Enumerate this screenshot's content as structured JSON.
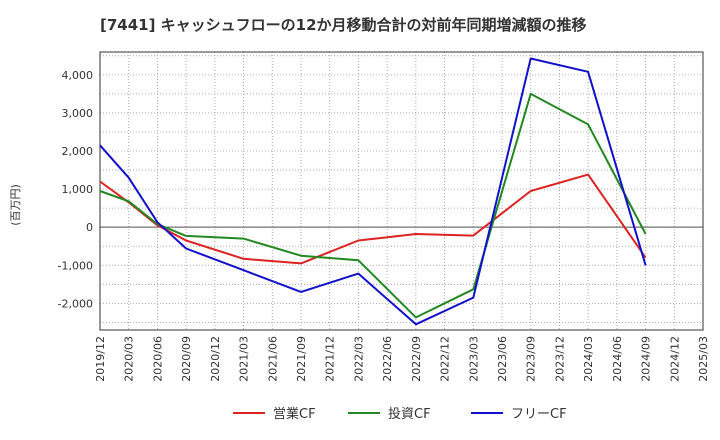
{
  "chart_data": {
    "type": "line",
    "title": "[7441]  キャッシュフローの12か月移動合計の対前年同期増減額の推移",
    "ylabel": "(百万円)",
    "xlabel": "",
    "ylim": [
      -2700,
      4600
    ],
    "yticks": [
      4000,
      3000,
      2000,
      1000,
      0,
      -1000,
      -2000
    ],
    "ytick_labels": [
      "4,000",
      "3,000",
      "2,000",
      "1,000",
      "0",
      "-1,000",
      "-2,000"
    ],
    "categories": [
      "2019/12",
      "2020/03",
      "2020/06",
      "2020/09",
      "2020/12",
      "2021/03",
      "2021/06",
      "2021/09",
      "2021/12",
      "2022/03",
      "2022/06",
      "2022/09",
      "2022/12",
      "2023/03",
      "2023/06",
      "2023/09",
      "2023/12",
      "2024/03",
      "2024/06",
      "2024/09",
      "2024/12",
      "2025/03"
    ],
    "series": [
      {
        "name": "営業CF",
        "color": "#dd2222",
        "values": [
          1200,
          650,
          50,
          -350,
          null,
          -830,
          null,
          -950,
          null,
          -350,
          null,
          -180,
          null,
          -220,
          null,
          950,
          null,
          1380,
          null,
          -800,
          null,
          null
        ]
      },
      {
        "name": "投資CF",
        "color": "#228822",
        "values": [
          950,
          680,
          80,
          -230,
          null,
          -300,
          null,
          -750,
          null,
          -870,
          null,
          -2370,
          null,
          -1630,
          null,
          3500,
          null,
          2700,
          null,
          -180,
          null,
          null
        ]
      },
      {
        "name": "フリーCF",
        "color": "#1111cc",
        "values": [
          2150,
          1300,
          130,
          -560,
          null,
          -1130,
          null,
          -1700,
          null,
          -1220,
          null,
          -2550,
          null,
          -1850,
          null,
          4430,
          null,
          4080,
          null,
          -1000,
          null,
          null
        ]
      }
    ]
  }
}
